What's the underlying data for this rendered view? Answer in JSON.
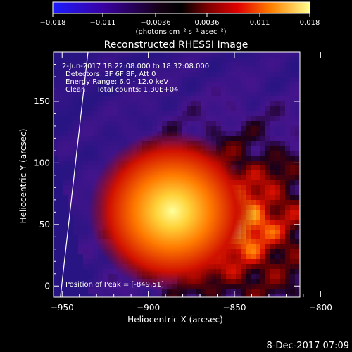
{
  "chart_data": {
    "type": "heatmap",
    "title": "Reconstructed RHESSI Image",
    "xlabel": "Heliocentric X (arcsec)",
    "ylabel": "Heliocentric Y (arcsec)",
    "x_range": [
      -955,
      -812
    ],
    "y_range": [
      -9,
      190
    ],
    "xticks": [
      -950,
      -900,
      -850,
      -800
    ],
    "yticks": [
      0,
      50,
      100,
      150
    ],
    "peak": {
      "x": -849,
      "y": 51
    },
    "colorbar": {
      "min": -0.018,
      "max": 0.018,
      "tick_values": [
        -0.018,
        -0.011,
        -0.0036,
        0.0036,
        0.011,
        0.018
      ],
      "tick_labels": [
        "−0.018",
        "−0.011",
        "−0.0036",
        "0.0036",
        "0.011",
        "0.018"
      ],
      "unit_label": "(photons cm⁻² s⁻¹ asec⁻²)"
    },
    "annotations": [
      "2-Jun-2017 18:22:08.000 to 18:32:08.000",
      "Detectors: 3F 6F 8F, Att 0",
      "Energy Range: 6.0 - 12.0 keV",
      "Clean     Total counts: 1.30E+04"
    ],
    "peak_label": "Position of Peak = [-849,51]",
    "limb_line": [
      {
        "x": -951,
        "y": -9
      },
      {
        "x": -935,
        "y": 190
      }
    ]
  },
  "footer": {
    "date": "8-Dec-2017 07:09"
  },
  "colors": {
    "background": "#000000",
    "text": "#ffffff"
  }
}
